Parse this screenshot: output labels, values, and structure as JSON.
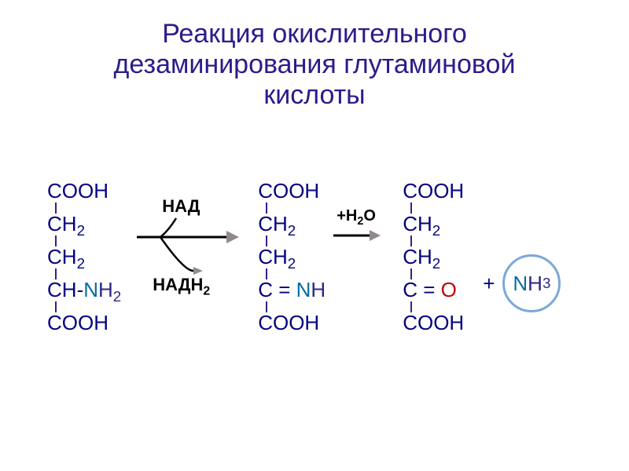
{
  "title": {
    "line1": "Реакция окислительного",
    "line2": "дезаминирования глутаминовой",
    "line3": "кислоты",
    "color": "#2a1c8a",
    "fontsize": 34,
    "fontweight": "400"
  },
  "molecule_style": {
    "fontsize": 26,
    "color_base": "#030280",
    "color_H": "#2e2685",
    "color_N": "#086b9f",
    "color_O_red": "#c00000",
    "bond_color": "#2e2685",
    "fontweight": "400"
  },
  "mol1": {
    "rows": [
      [
        {
          "t": "COOH",
          "c": "base"
        }
      ],
      [
        {
          "t": "CH",
          "c": "base"
        },
        {
          "t": "2",
          "c": "base",
          "sub": true
        }
      ],
      [
        {
          "t": "CH",
          "c": "base"
        },
        {
          "t": "2",
          "c": "base",
          "sub": true
        }
      ],
      [
        {
          "t": "CH",
          "c": "base"
        },
        {
          "t": "-",
          "c": "base"
        },
        {
          "t": "N",
          "c": "N"
        },
        {
          "t": "H",
          "c": "H"
        },
        {
          "t": "2",
          "c": "H",
          "sub": true
        }
      ],
      [
        {
          "t": "COOH",
          "c": "base"
        }
      ]
    ]
  },
  "mol2": {
    "rows": [
      [
        {
          "t": "COOH",
          "c": "base"
        }
      ],
      [
        {
          "t": "CH",
          "c": "base"
        },
        {
          "t": "2",
          "c": "base",
          "sub": true
        }
      ],
      [
        {
          "t": "CH",
          "c": "base"
        },
        {
          "t": "2",
          "c": "base",
          "sub": true
        }
      ],
      [
        {
          "t": "C = ",
          "c": "base"
        },
        {
          "t": "N",
          "c": "N"
        },
        {
          "t": "H",
          "c": "H"
        }
      ],
      [
        {
          "t": "COOH",
          "c": "base"
        }
      ]
    ]
  },
  "mol3": {
    "rows": [
      [
        {
          "t": "COOH",
          "c": "base"
        }
      ],
      [
        {
          "t": "CH",
          "c": "base"
        },
        {
          "t": "2",
          "c": "base",
          "sub": true
        }
      ],
      [
        {
          "t": "CH",
          "c": "base"
        },
        {
          "t": "2",
          "c": "base",
          "sub": true
        }
      ],
      [
        {
          "t": "C = ",
          "c": "base"
        },
        {
          "t": "O",
          "c": "Ored"
        }
      ],
      [
        {
          "t": "COOH",
          "c": "base"
        }
      ]
    ]
  },
  "cofactors": {
    "nad": "НАД",
    "nadh2_pre": "НАДН",
    "nadh2_sub": "2",
    "color": "#000000",
    "fontsize": 22,
    "fontweight": "bold"
  },
  "arrow1": {
    "shaft_color": "#000000",
    "head_color": "#908a8a",
    "width": 130,
    "curved_branch_color": "#000000"
  },
  "arrow2": {
    "label_pre": "+H",
    "label_sub": "2",
    "label_post": "O",
    "label_color": "#000000",
    "label_fontsize": 20,
    "label_fontweight": "bold",
    "shaft_color": "#000000",
    "head_color": "#908a8a",
    "width": 60
  },
  "plus_nh3": {
    "plus_text": "+",
    "plus_color": "#030280",
    "plus_fontsize": 26,
    "circle_border": "#7aa8d8",
    "circle_diameter": 68,
    "N_text": "N",
    "N_color": "#086b9f",
    "H_text": "H",
    "H_color": "#2e2685",
    "sub_text": "3",
    "fontsize": 26
  },
  "layout": {
    "mol_left_pad": 60,
    "gap_mol1_arrow1": 20,
    "gap_arrow1_mol2": 14,
    "gap_mol2_arrow2": 10,
    "gap_arrow2_mol3": 14,
    "gap_mol3_plus": 24,
    "arrow1_block_width": 140,
    "arrow2_block_width": 74
  }
}
